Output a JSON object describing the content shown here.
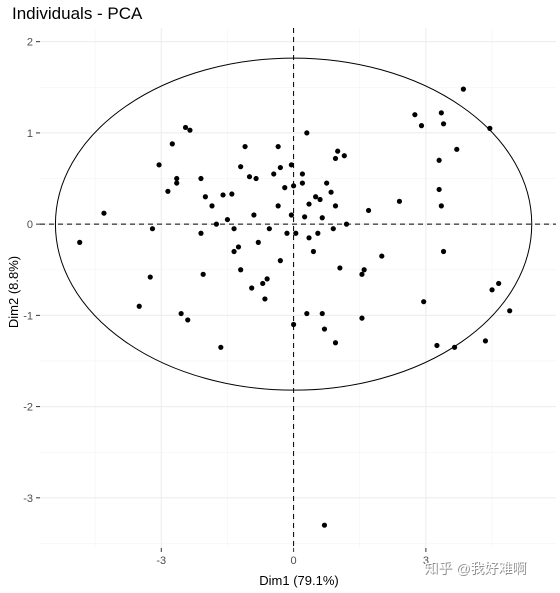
{
  "chart_data": {
    "type": "scatter",
    "title": "Individuals - PCA",
    "xlabel": "Dim1 (79.1%)",
    "ylabel": "Dim2 (8.8%)",
    "xlim": [
      -5.75,
      5.95
    ],
    "ylim": [
      -3.55,
      2.15
    ],
    "x_ticks": [
      -3,
      0,
      3
    ],
    "y_ticks": [
      -3,
      -2,
      -1,
      0,
      1,
      2
    ],
    "grid": true,
    "reference_lines": {
      "x": 0,
      "y": 0,
      "style": "dashed"
    },
    "ellipse": {
      "center": [
        0,
        0
      ],
      "rx": 5.4,
      "ry": 1.82
    },
    "points": [
      [
        -4.85,
        -0.2
      ],
      [
        -4.3,
        0.12
      ],
      [
        -3.5,
        -0.9
      ],
      [
        -3.25,
        -0.58
      ],
      [
        -3.2,
        -0.05
      ],
      [
        -3.05,
        0.65
      ],
      [
        -2.85,
        0.36
      ],
      [
        -2.75,
        0.88
      ],
      [
        -2.65,
        0.5
      ],
      [
        -2.65,
        0.45
      ],
      [
        -2.55,
        -0.98
      ],
      [
        -2.45,
        1.06
      ],
      [
        -2.35,
        1.03
      ],
      [
        -2.4,
        -1.05
      ],
      [
        -2.1,
        0.5
      ],
      [
        -2.0,
        0.3
      ],
      [
        -2.05,
        -0.55
      ],
      [
        -1.85,
        0.2
      ],
      [
        -1.6,
        0.32
      ],
      [
        -1.65,
        -1.35
      ],
      [
        -1.4,
        0.33
      ],
      [
        -1.5,
        0.05
      ],
      [
        -1.35,
        -0.05
      ],
      [
        -1.2,
        0.63
      ],
      [
        -1.35,
        -0.3
      ],
      [
        -1.2,
        -0.5
      ],
      [
        -1.1,
        0.85
      ],
      [
        -1.0,
        0.52
      ],
      [
        -0.85,
        0.5
      ],
      [
        -0.9,
        0.1
      ],
      [
        -0.95,
        -0.7
      ],
      [
        -0.8,
        -0.2
      ],
      [
        -0.7,
        -0.65
      ],
      [
        -0.65,
        -0.82
      ],
      [
        -0.35,
        0.85
      ],
      [
        -0.3,
        0.62
      ],
      [
        -0.35,
        0.2
      ],
      [
        -0.2,
        0.4
      ],
      [
        -0.3,
        -0.4
      ],
      [
        -0.15,
        -0.1
      ],
      [
        -0.05,
        0.65
      ],
      [
        0.0,
        0.42
      ],
      [
        -0.05,
        0.1
      ],
      [
        0.05,
        -0.1
      ],
      [
        0.2,
        0.55
      ],
      [
        0.2,
        0.45
      ],
      [
        0.25,
        0.08
      ],
      [
        0.35,
        -0.15
      ],
      [
        0.3,
        1.0
      ],
      [
        0.35,
        0.22
      ],
      [
        0.45,
        -0.3
      ],
      [
        0.5,
        0.3
      ],
      [
        0.55,
        -0.1
      ],
      [
        0.6,
        0.27
      ],
      [
        0.65,
        -0.98
      ],
      [
        0.75,
        0.45
      ],
      [
        0.7,
        -1.15
      ],
      [
        0.85,
        0.35
      ],
      [
        0.9,
        -0.05
      ],
      [
        0.95,
        0.72
      ],
      [
        0.95,
        0.2
      ],
      [
        1.0,
        0.8
      ],
      [
        0.95,
        -1.3
      ],
      [
        1.05,
        -0.48
      ],
      [
        1.15,
        0.75
      ],
      [
        1.2,
        0.0
      ],
      [
        1.6,
        -0.5
      ],
      [
        1.55,
        -0.55
      ],
      [
        1.55,
        -1.03
      ],
      [
        1.7,
        0.15
      ],
      [
        2.0,
        -0.35
      ],
      [
        2.4,
        0.25
      ],
      [
        2.75,
        1.2
      ],
      [
        2.9,
        1.08
      ],
      [
        2.95,
        -0.85
      ],
      [
        3.25,
        -1.33
      ],
      [
        3.3,
        0.7
      ],
      [
        3.35,
        1.22
      ],
      [
        3.3,
        0.38
      ],
      [
        3.35,
        0.2
      ],
      [
        3.4,
        1.1
      ],
      [
        3.4,
        -0.3
      ],
      [
        3.7,
        0.82
      ],
      [
        3.65,
        -1.35
      ],
      [
        3.85,
        1.48
      ],
      [
        4.35,
        -1.28
      ],
      [
        4.45,
        1.05
      ],
      [
        4.5,
        -0.72
      ],
      [
        4.65,
        -0.65
      ],
      [
        4.9,
        -0.95
      ],
      [
        0.7,
        -3.3
      ],
      [
        0.3,
        -0.98
      ],
      [
        0.0,
        -1.1
      ],
      [
        -0.6,
        -0.6
      ],
      [
        -1.75,
        0.0
      ],
      [
        -1.25,
        -0.25
      ],
      [
        0.65,
        0.07
      ],
      [
        -0.45,
        0.55
      ],
      [
        -0.55,
        -0.05
      ],
      [
        -2.1,
        -0.1
      ]
    ]
  },
  "watermark": "知乎 @我好难啊"
}
